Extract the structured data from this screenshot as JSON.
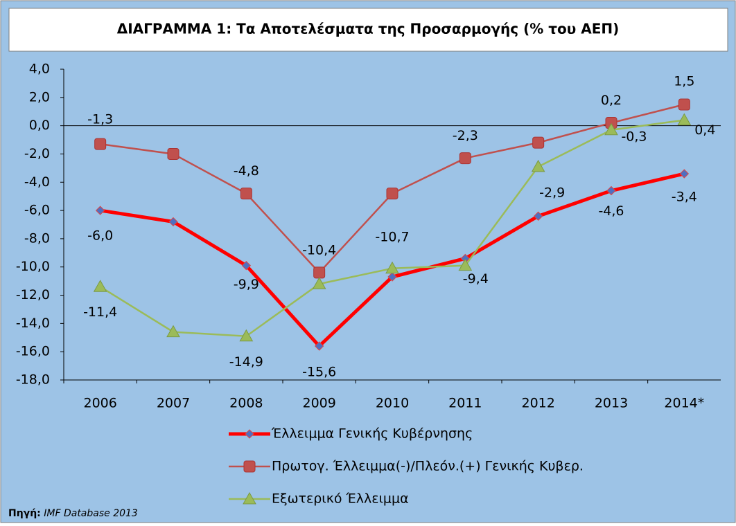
{
  "chart_data": {
    "type": "line",
    "title": "ΔΙΑΓΡΑΜΜΑ 1: Τα Αποτελέσματα της Προσαρμογής (% του ΑΕΠ)",
    "categories": [
      "2006",
      "2007",
      "2008",
      "2009",
      "2010",
      "2011",
      "2012",
      "2013",
      "2014*"
    ],
    "series": [
      {
        "name": "Έλλειμμα Γενικής Κυβέρνησης",
        "color": "#ff0000",
        "marker_color": "#4f6fc0",
        "marker": "diamond",
        "values": [
          -6.0,
          -6.8,
          -9.9,
          -15.6,
          -10.7,
          -9.4,
          -6.4,
          -4.6,
          -3.4
        ],
        "value_labels": [
          "-6,0",
          null,
          "-9,9",
          "-15,6",
          "-10,7",
          "-9,4",
          null,
          "-4,6",
          "-3,4"
        ]
      },
      {
        "name": "Πρωτογ. Έλλειμμα(-)/Πλεόν.(+) Γενικής Κυβερ.",
        "color": "#c0504d",
        "marker_color": "#c0504d",
        "marker": "square",
        "values": [
          -1.3,
          -2.0,
          -4.8,
          -10.4,
          -4.8,
          -2.3,
          -1.2,
          0.2,
          1.5
        ],
        "value_labels": [
          "-1,3",
          null,
          "-4,8",
          "-10,4",
          null,
          "-2,3",
          null,
          "0,2",
          "1,5"
        ]
      },
      {
        "name": "Εξωτερικό Έλλειμμα",
        "color": "#9bbb59",
        "marker_color": "#9bbb59",
        "marker": "triangle",
        "values": [
          -11.4,
          -14.6,
          -14.9,
          -11.2,
          -10.1,
          -9.9,
          -2.9,
          -0.3,
          0.4
        ],
        "value_labels": [
          "-11,4",
          null,
          "-14,9",
          null,
          null,
          null,
          "-2,9",
          "-0,3",
          "0,4"
        ]
      }
    ],
    "ylim": [
      -18,
      4
    ],
    "yticks": [
      {
        "value": -18,
        "label": "-18,0"
      },
      {
        "value": -16,
        "label": "-16,0"
      },
      {
        "value": -14,
        "label": "-14,0"
      },
      {
        "value": -12,
        "label": "-12,0"
      },
      {
        "value": -10,
        "label": "-10,0"
      },
      {
        "value": -8,
        "label": "-8,0"
      },
      {
        "value": -6,
        "label": "-6,0"
      },
      {
        "value": -4,
        "label": "-4,0"
      },
      {
        "value": -2,
        "label": "-2,0"
      },
      {
        "value": 0,
        "label": "0,0"
      },
      {
        "value": 2,
        "label": "2,0"
      },
      {
        "value": 4,
        "label": "4,0"
      }
    ],
    "grid": false,
    "legend": "bottom",
    "source_label": "Πηγή:",
    "source": "IMF Database 2013"
  }
}
